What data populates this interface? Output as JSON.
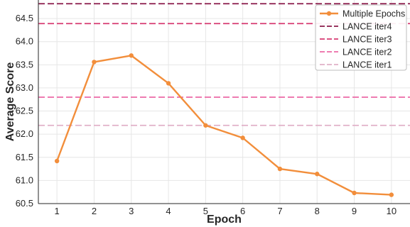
{
  "chart_data": {
    "type": "line",
    "title": "",
    "xlabel": "Epoch",
    "ylabel": "Average Score",
    "xlim": [
      0.5,
      10.5
    ],
    "ylim": [
      60.5,
      64.9
    ],
    "x_ticks": [
      1,
      2,
      3,
      4,
      5,
      6,
      7,
      8,
      9,
      10
    ],
    "y_ticks": [
      60.5,
      61.0,
      61.5,
      62.0,
      62.5,
      63.0,
      63.5,
      64.0,
      64.5
    ],
    "y_tick_labels": [
      "60.5",
      "61.0",
      "61.5",
      "62.0",
      "62.5",
      "63.0",
      "63.5",
      "64.0",
      "64.5"
    ],
    "grid": true,
    "legend_position": "top-right",
    "series": [
      {
        "name": "Multiple Epochs",
        "x": [
          1,
          2,
          3,
          4,
          5,
          6,
          7,
          8,
          9,
          10
        ],
        "values": [
          61.42,
          63.56,
          63.7,
          63.1,
          62.19,
          61.92,
          61.25,
          61.14,
          60.73,
          60.69
        ],
        "color": "#f28e3b",
        "style": "solid-marker"
      }
    ],
    "reference_lines": [
      {
        "name": "LANCE iter4",
        "value": 64.82,
        "color": "#8b1a4a"
      },
      {
        "name": "LANCE iter3",
        "value": 64.39,
        "color": "#d63a72"
      },
      {
        "name": "LANCE iter2",
        "value": 62.8,
        "color": "#ec6aa6"
      },
      {
        "name": "LANCE iter1",
        "value": 62.19,
        "color": "#e0b0c8"
      }
    ]
  }
}
